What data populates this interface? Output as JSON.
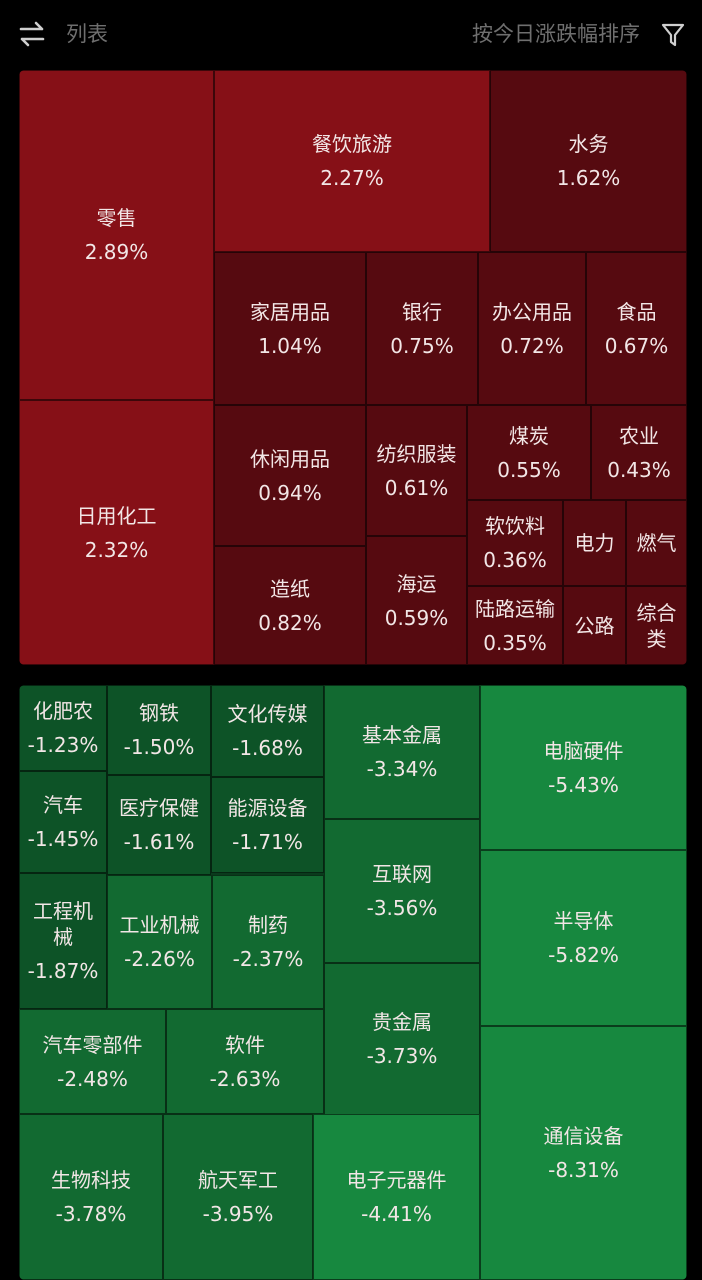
{
  "header": {
    "list_label": "列表",
    "sort_label": "按今日涨跌幅排序",
    "left_icon": "swap-arrows-icon",
    "right_icon": "filter-funnel-icon"
  },
  "colors": {
    "up_strong": "#861017",
    "up_mid": "#6a0d13",
    "up_dark": "#560a10",
    "down_light": "#17883f",
    "down_mid": "#126a31",
    "down_dark": "#0d5327"
  },
  "gainers": [
    {
      "name": "零售",
      "pct": "2.89%"
    },
    {
      "name": "日用化工",
      "pct": "2.32%"
    },
    {
      "name": "餐饮旅游",
      "pct": "2.27%"
    },
    {
      "name": "水务",
      "pct": "1.62%"
    },
    {
      "name": "家居用品",
      "pct": "1.04%"
    },
    {
      "name": "银行",
      "pct": "0.75%"
    },
    {
      "name": "办公用品",
      "pct": "0.72%"
    },
    {
      "name": "食品",
      "pct": "0.67%"
    },
    {
      "name": "休闲用品",
      "pct": "0.94%"
    },
    {
      "name": "纺织服装",
      "pct": "0.61%"
    },
    {
      "name": "煤炭",
      "pct": "0.55%"
    },
    {
      "name": "农业",
      "pct": "0.43%"
    },
    {
      "name": "造纸",
      "pct": "0.82%"
    },
    {
      "name": "海运",
      "pct": "0.59%"
    },
    {
      "name": "软饮料",
      "pct": "0.36%"
    },
    {
      "name": "电力",
      "pct": ""
    },
    {
      "name": "燃气",
      "pct": ""
    },
    {
      "name": "陆路运输",
      "pct": "0.35%"
    },
    {
      "name": "公路",
      "pct": ""
    },
    {
      "name": "综合类",
      "pct": ""
    }
  ],
  "losers": [
    {
      "name": "化肥农",
      "pct": "-1.23%"
    },
    {
      "name": "钢铁",
      "pct": "-1.50%"
    },
    {
      "name": "文化传媒",
      "pct": "-1.68%"
    },
    {
      "name": "汽车",
      "pct": "-1.45%"
    },
    {
      "name": "医疗保健",
      "pct": "-1.61%"
    },
    {
      "name": "能源设备",
      "pct": "-1.71%"
    },
    {
      "name": "工程机械",
      "pct": "-1.87%"
    },
    {
      "name": "工业机械",
      "pct": "-2.26%"
    },
    {
      "name": "制药",
      "pct": "-2.37%"
    },
    {
      "name": "基本金属",
      "pct": "-3.34%"
    },
    {
      "name": "互联网",
      "pct": "-3.56%"
    },
    {
      "name": "贵金属",
      "pct": "-3.73%"
    },
    {
      "name": "电脑硬件",
      "pct": "-5.43%"
    },
    {
      "name": "半导体",
      "pct": "-5.82%"
    },
    {
      "name": "通信设备",
      "pct": "-8.31%"
    },
    {
      "name": "汽车零部件",
      "pct": "-2.48%"
    },
    {
      "name": "软件",
      "pct": "-2.63%"
    },
    {
      "name": "生物科技",
      "pct": "-3.78%"
    },
    {
      "name": "航天军工",
      "pct": "-3.95%"
    },
    {
      "name": "电子元器件",
      "pct": "-4.41%"
    }
  ]
}
